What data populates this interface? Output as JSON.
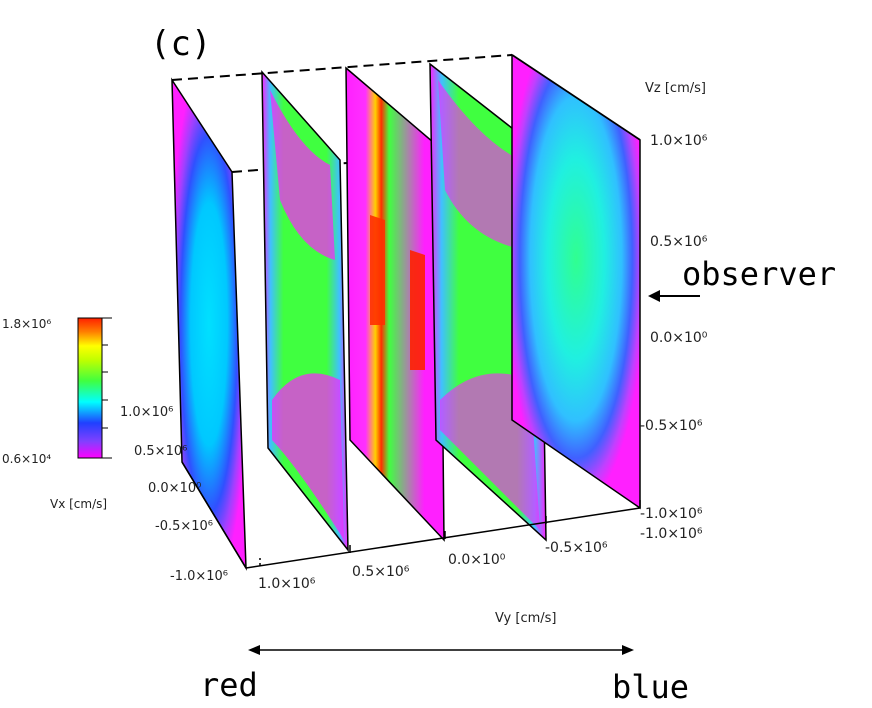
{
  "panel_label": "(c)",
  "observer_label": "observer",
  "red_label": "red",
  "blue_label": "blue",
  "axes": {
    "vz_label": "Vz [cm/s]",
    "vz_ticks": [
      "1.0×10⁶",
      "0.5×10⁶",
      "0.0×10⁰",
      "-0.5×10⁶",
      "-1.0×10⁶"
    ],
    "vy_label": "Vy [cm/s]",
    "vy_ticks": [
      "1.0×10⁶",
      "0.5×10⁶",
      "0.0×10⁰",
      "-0.5×10⁶",
      "-1.0×10⁶"
    ],
    "vx_label": "Vx [cm/s]",
    "vx_ticks": [
      "1.0×10⁶",
      "0.5×10⁶",
      "0.0×10⁰",
      "-0.5×10⁶",
      "-1.0×10⁶"
    ]
  },
  "colorbar": {
    "max_label": "1.8×10⁶",
    "min_label": "0.6×10⁴",
    "colors": [
      "#ff00ff",
      "#8040ff",
      "#2040ff",
      "#00ffff",
      "#40ff40",
      "#c0ff00",
      "#ffff00",
      "#ff8000",
      "#ff2000"
    ]
  }
}
